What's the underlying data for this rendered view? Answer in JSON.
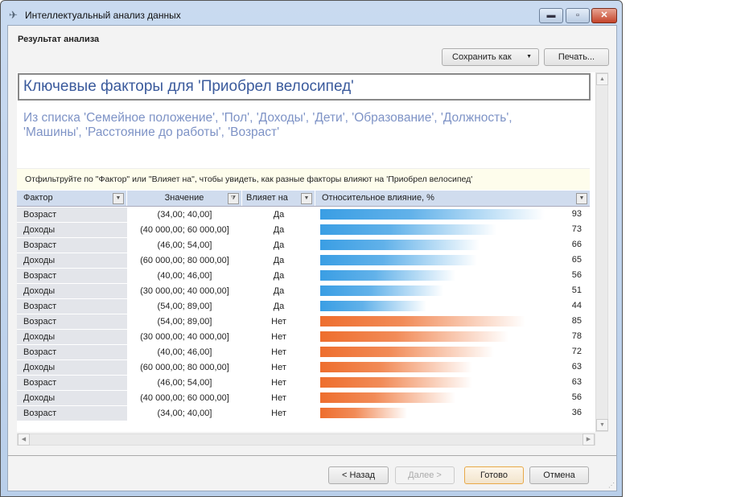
{
  "window": {
    "title": "Интеллектуальный анализ данных",
    "icon": "paper-plane-icon",
    "controls": {
      "minimize": "▬",
      "maximize": "▫",
      "close": "✕"
    }
  },
  "section_title": "Результат анализа",
  "toolbar": {
    "save_as": "Сохранить как",
    "print": "Печать..."
  },
  "report": {
    "heading": "Ключевые факторы для 'Приобрел велосипед'",
    "subheading": "Из списка 'Семейное положение', 'Пол', 'Доходы', 'Дети', 'Образование', 'Должность', 'Машины', 'Расстояние до работы', 'Возраст'",
    "hint": "Отфильтруйте по \"Фактор\" или \"Влияет на\", чтобы увидеть, как разные факторы влияют на 'Приобрел велосипед'"
  },
  "grid": {
    "columns": [
      "Фактор",
      "Значение",
      "Влияет на",
      "Относительное влияние, %"
    ],
    "colors": {
      "yes": "#3a9ee4",
      "no": "#ee6e2e"
    },
    "rows": [
      {
        "factor": "Возраст",
        "value": "(34,00; 40,00]",
        "affects": "Да",
        "impact": 93
      },
      {
        "factor": "Доходы",
        "value": "(40 000,00; 60 000,00]",
        "affects": "Да",
        "impact": 73
      },
      {
        "factor": "Возраст",
        "value": "(46,00; 54,00]",
        "affects": "Да",
        "impact": 66
      },
      {
        "factor": "Доходы",
        "value": "(60 000,00; 80 000,00]",
        "affects": "Да",
        "impact": 65
      },
      {
        "factor": "Возраст",
        "value": "(40,00; 46,00]",
        "affects": "Да",
        "impact": 56
      },
      {
        "factor": "Доходы",
        "value": "(30 000,00; 40 000,00]",
        "affects": "Да",
        "impact": 51
      },
      {
        "factor": "Возраст",
        "value": "(54,00; 89,00]",
        "affects": "Да",
        "impact": 44
      },
      {
        "factor": "Возраст",
        "value": "(54,00; 89,00]",
        "affects": "Нет",
        "impact": 85
      },
      {
        "factor": "Доходы",
        "value": "(30 000,00; 40 000,00]",
        "affects": "Нет",
        "impact": 78
      },
      {
        "factor": "Возраст",
        "value": "(40,00; 46,00]",
        "affects": "Нет",
        "impact": 72
      },
      {
        "factor": "Доходы",
        "value": "(60 000,00; 80 000,00]",
        "affects": "Нет",
        "impact": 63
      },
      {
        "factor": "Возраст",
        "value": "(46,00; 54,00]",
        "affects": "Нет",
        "impact": 63
      },
      {
        "factor": "Доходы",
        "value": "(40 000,00; 60 000,00]",
        "affects": "Нет",
        "impact": 56
      },
      {
        "factor": "Возраст",
        "value": "(34,00; 40,00]",
        "affects": "Нет",
        "impact": 36
      }
    ]
  },
  "footer": {
    "back": "< Назад",
    "next": "Далее >",
    "finish": "Готово",
    "cancel": "Отмена"
  }
}
